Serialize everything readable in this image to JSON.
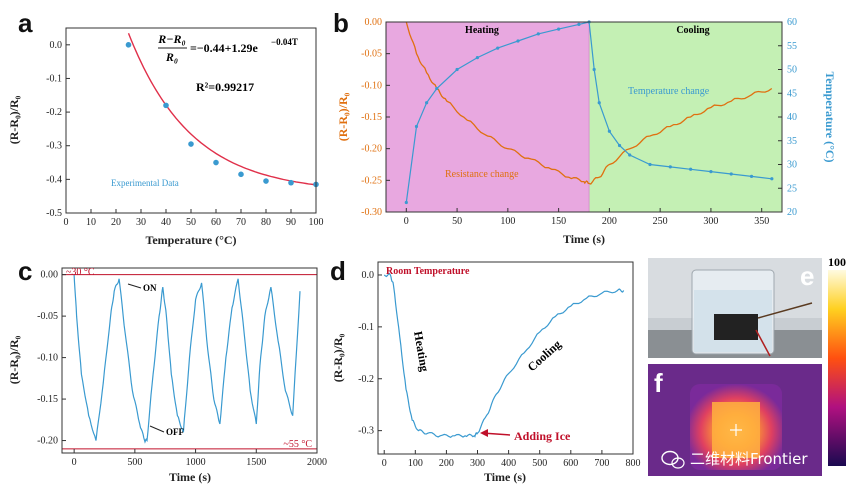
{
  "chart_data": [
    {
      "panel": "a",
      "type": "scatter",
      "xlabel": "Temperature (°C)",
      "ylabel": "(R-R₀)/R₀",
      "xlim": [
        0,
        100
      ],
      "ylim": [
        -0.5,
        0.05
      ],
      "xticks": [
        0,
        10,
        20,
        30,
        40,
        50,
        60,
        70,
        80,
        90,
        100
      ],
      "yticks": [
        0.0,
        -0.1,
        -0.2,
        -0.3,
        -0.4,
        -0.5
      ],
      "equation_lhs_num": "R−R₀",
      "equation_lhs_den": "R₀",
      "equation_rhs": "=−0.44+1.29e",
      "equation_exp": "−0.04T",
      "r2": "R²=0.99217",
      "annotation": "Experimental Data",
      "series": [
        {
          "name": "Experimental Data",
          "x": [
            25,
            40,
            50,
            60,
            70,
            80,
            90,
            100
          ],
          "y": [
            0.0,
            -0.18,
            -0.295,
            -0.35,
            -0.385,
            -0.405,
            -0.41,
            -0.415
          ]
        }
      ],
      "fit": {
        "a": -0.44,
        "b": 1.29,
        "k": -0.04
      }
    },
    {
      "panel": "b",
      "type": "line",
      "xlabel": "Time (s)",
      "ylabel_left": "(R-R₀)/R₀",
      "ylabel_right": "Temperature (°C)",
      "xlim": [
        -20,
        370
      ],
      "ylim_left": [
        -0.3,
        0.0
      ],
      "ylim_right": [
        20,
        60
      ],
      "xticks": [
        0,
        50,
        100,
        150,
        200,
        250,
        300,
        350
      ],
      "yticks_left": [
        0.0,
        -0.05,
        -0.1,
        -0.15,
        -0.2,
        -0.25,
        -0.3
      ],
      "yticks_right": [
        20,
        25,
        30,
        35,
        40,
        45,
        50,
        55,
        60
      ],
      "regions": [
        {
          "label": "Heating",
          "from": -20,
          "to": 180,
          "color": "#e8a8e0"
        },
        {
          "label": "Cooling",
          "from": 180,
          "to": 370,
          "color": "#c4f0b4"
        }
      ],
      "annotations": [
        "Resistance change",
        "Temperature change"
      ],
      "series": [
        {
          "name": "Resistance change",
          "axis": "left",
          "color": "#e07010",
          "x": [
            0,
            10,
            20,
            30,
            40,
            60,
            80,
            100,
            120,
            140,
            160,
            175,
            180,
            190,
            200,
            220,
            240,
            260,
            280,
            300,
            320,
            340,
            360
          ],
          "y": [
            0.0,
            -0.05,
            -0.08,
            -0.105,
            -0.125,
            -0.155,
            -0.18,
            -0.2,
            -0.215,
            -0.23,
            -0.245,
            -0.252,
            -0.255,
            -0.245,
            -0.225,
            -0.2,
            -0.18,
            -0.165,
            -0.15,
            -0.135,
            -0.125,
            -0.115,
            -0.105
          ]
        },
        {
          "name": "Temperature change",
          "axis": "right",
          "color": "#3a9ad0",
          "x": [
            0,
            10,
            20,
            30,
            50,
            70,
            90,
            110,
            130,
            150,
            170,
            180,
            185,
            190,
            200,
            210,
            220,
            240,
            260,
            280,
            300,
            320,
            340,
            360
          ],
          "y": [
            22,
            38,
            43,
            46,
            50,
            52.5,
            54.5,
            56,
            57.5,
            58.5,
            59.5,
            60,
            50,
            43,
            37,
            34,
            32,
            30,
            29.5,
            29,
            28.5,
            28,
            27.5,
            27
          ]
        }
      ]
    },
    {
      "panel": "c",
      "type": "line",
      "xlabel": "Time (s)",
      "ylabel": "(R-R₀)/R₀",
      "xlim": [
        -100,
        2000
      ],
      "ylim": [
        -0.215,
        0.008
      ],
      "xticks": [
        0,
        500,
        1000,
        1500,
        2000
      ],
      "yticks": [
        0.0,
        -0.05,
        -0.1,
        -0.15,
        -0.2
      ],
      "hlines": [
        {
          "y": 0.0,
          "label": "~30 °C"
        },
        {
          "y": -0.21,
          "label": "~55 °C"
        }
      ],
      "annotations": [
        "ON",
        "OFF"
      ],
      "series": [
        {
          "name": "",
          "color": "#3a9ad0",
          "x": [
            0,
            20,
            60,
            120,
            180,
            240,
            300,
            330,
            370,
            420,
            480,
            540,
            580,
            600,
            650,
            700,
            730,
            760,
            800,
            850,
            900,
            950,
            1000,
            1050,
            1100,
            1150,
            1200,
            1250,
            1300,
            1350,
            1400,
            1450,
            1500,
            1530,
            1570,
            1620,
            1680,
            1740,
            1800,
            1860
          ],
          "y": [
            0.0,
            -0.05,
            -0.12,
            -0.17,
            -0.2,
            -0.13,
            -0.05,
            -0.02,
            -0.005,
            -0.07,
            -0.14,
            -0.18,
            -0.2,
            -0.2,
            -0.12,
            -0.05,
            -0.015,
            -0.05,
            -0.12,
            -0.17,
            -0.19,
            -0.1,
            -0.03,
            -0.01,
            -0.09,
            -0.15,
            -0.18,
            -0.1,
            -0.04,
            -0.005,
            -0.07,
            -0.14,
            -0.18,
            -0.11,
            -0.05,
            -0.015,
            -0.08,
            -0.14,
            -0.17,
            -0.02
          ]
        }
      ]
    },
    {
      "panel": "d",
      "type": "line",
      "xlabel": "Time (s)",
      "ylabel": "(R-R₀)/R₀",
      "xlim": [
        -20,
        800
      ],
      "ylim": [
        -0.345,
        0.025
      ],
      "xticks": [
        0,
        100,
        200,
        300,
        400,
        500,
        600,
        700,
        800
      ],
      "yticks": [
        0.0,
        -0.1,
        -0.2,
        -0.3
      ],
      "annotations": [
        "Room Temperature",
        "Heating",
        "Cooling",
        "Adding Ice"
      ],
      "series": [
        {
          "name": "",
          "color": "#3a9ad0",
          "x": [
            0,
            20,
            30,
            50,
            70,
            90,
            110,
            140,
            180,
            220,
            260,
            290,
            300,
            330,
            360,
            400,
            450,
            500,
            550,
            600,
            650,
            700,
            750,
            770
          ],
          "y": [
            0.0,
            0.0,
            -0.02,
            -0.12,
            -0.22,
            -0.28,
            -0.3,
            -0.305,
            -0.31,
            -0.31,
            -0.31,
            -0.31,
            -0.305,
            -0.27,
            -0.23,
            -0.19,
            -0.15,
            -0.11,
            -0.08,
            -0.06,
            -0.045,
            -0.035,
            -0.03,
            -0.03
          ]
        }
      ]
    }
  ],
  "panel_labels": [
    "a",
    "b",
    "c",
    "d",
    "e",
    "f"
  ],
  "colorbar": {
    "max": "100"
  },
  "watermark": "二维材料Frontier"
}
